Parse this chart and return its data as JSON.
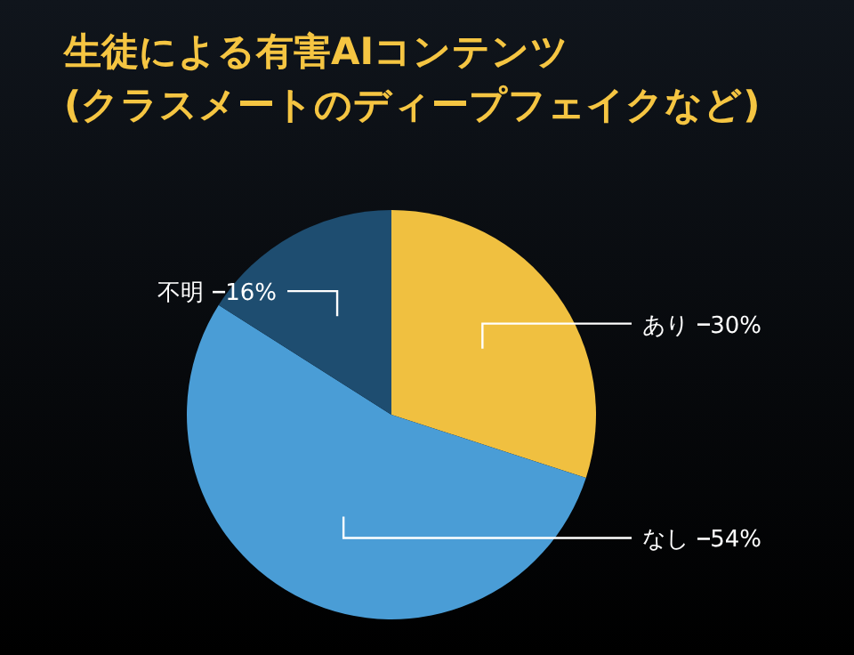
{
  "chart_data": {
    "type": "pie",
    "title": "生徒による有害AIコンテンツ\n(クラスメートのディープフェイクなど)",
    "categories": [
      "あり",
      "なし",
      "不明"
    ],
    "values": [
      30,
      54,
      16
    ],
    "colors": [
      "#f0c040",
      "#4a9dd6",
      "#1e4d70"
    ],
    "value_labels": [
      "30%",
      "54%",
      "16%"
    ]
  }
}
